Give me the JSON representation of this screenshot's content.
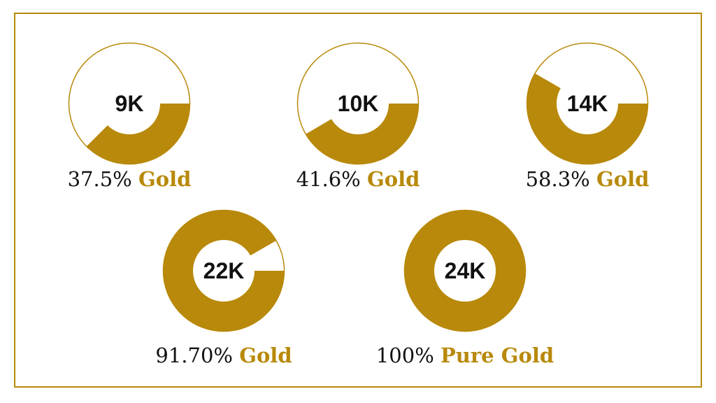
{
  "chart_data": [
    {
      "type": "donut",
      "center_label": "9K",
      "values": [
        37.5
      ],
      "value_labels": [
        "37.5%"
      ],
      "caption": "Gold",
      "color": "#b8890a"
    },
    {
      "type": "donut",
      "center_label": "10K",
      "values": [
        41.6
      ],
      "value_labels": [
        "41.6%"
      ],
      "caption": "Gold",
      "color": "#b8890a"
    },
    {
      "type": "donut",
      "center_label": "14K",
      "values": [
        58.3
      ],
      "value_labels": [
        "58.3%"
      ],
      "caption": "Gold",
      "color": "#b8890a"
    },
    {
      "type": "donut",
      "center_label": "22K",
      "values": [
        91.7
      ],
      "value_labels": [
        "91.70%"
      ],
      "caption": "Gold",
      "color": "#b8890a"
    },
    {
      "type": "donut",
      "center_label": "24K",
      "values": [
        100
      ],
      "value_labels": [
        "100%"
      ],
      "caption": "Pure Gold",
      "color": "#b8890a"
    }
  ]
}
